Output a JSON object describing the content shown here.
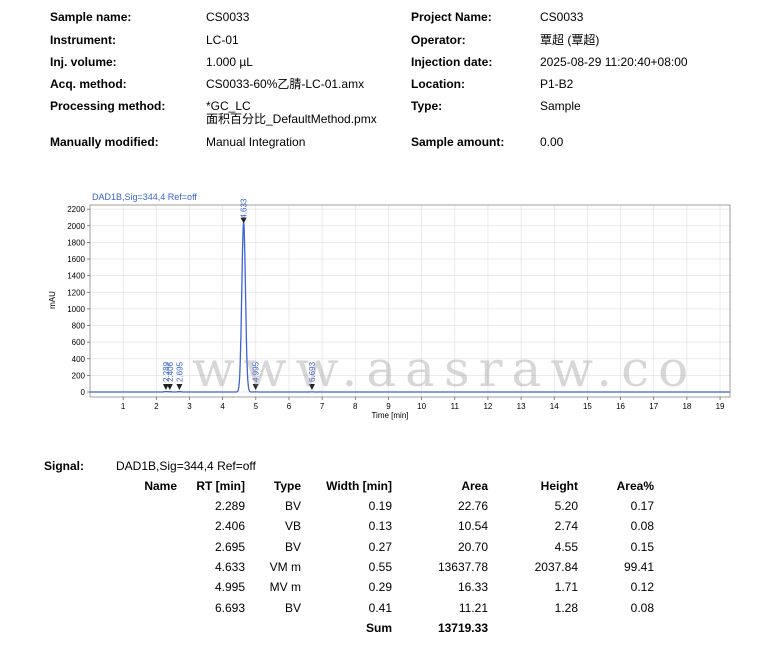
{
  "header": {
    "left": [
      {
        "label": "Sample name:",
        "value": "CS0033"
      },
      {
        "label": "Instrument:",
        "value": "LC-01"
      },
      {
        "label": "Inj. volume:",
        "value": "1.000 µL"
      },
      {
        "label": "Acq. method:",
        "value": "CS0033-60%乙腈-LC-01.amx"
      },
      {
        "label": "Processing method:",
        "value": "*GC_LC",
        "value2": "面积百分比_DefaultMethod.pmx"
      },
      {
        "label": "Manually modified:",
        "value": "Manual Integration"
      }
    ],
    "right": [
      {
        "label": "Project Name:",
        "value": "CS0033"
      },
      {
        "label": "Operator:",
        "value": "覃超 (覃超)"
      },
      {
        "label": "Injection date:",
        "value": "2025-08-29 11:20:40+08:00"
      },
      {
        "label": "Location:",
        "value": "P1-B2"
      },
      {
        "label": "Type:",
        "value": "Sample"
      },
      {
        "label": "Sample amount:",
        "value": "0.00"
      }
    ]
  },
  "chart_data": {
    "type": "line",
    "signal_label": "DAD1B,Sig=344,4  Ref=off",
    "xlabel": "Time [min]",
    "ylabel": "mAU",
    "xlim": [
      0,
      19.3
    ],
    "ylim": [
      -60,
      2250
    ],
    "xticks": [
      1,
      2,
      3,
      4,
      5,
      6,
      7,
      8,
      9,
      10,
      11,
      12,
      13,
      14,
      15,
      16,
      17,
      18,
      19
    ],
    "yticks": [
      0,
      200,
      400,
      600,
      800,
      1000,
      1200,
      1400,
      1600,
      1800,
      2000,
      2200
    ],
    "grid": true,
    "color": "#3b62d6",
    "peaks": [
      {
        "rt": 2.289,
        "label": "2.289",
        "height": 5.2
      },
      {
        "rt": 2.406,
        "label": "2.406",
        "height": 2.74
      },
      {
        "rt": 2.695,
        "label": "2.695",
        "height": 4.55
      },
      {
        "rt": 4.633,
        "label": "4.633",
        "height": 2037.84
      },
      {
        "rt": 4.995,
        "label": "4.995",
        "height": 1.71
      },
      {
        "rt": 6.693,
        "label": "6.693",
        "height": 1.28
      }
    ]
  },
  "watermark": "www.aasraw.co",
  "signal": {
    "label": "Signal:",
    "value": "DAD1B,Sig=344,4  Ref=off"
  },
  "table": {
    "headers": [
      "Name",
      "RT [min]",
      "Type",
      "Width [min]",
      "Area",
      "Height",
      "Area%"
    ],
    "rows": [
      [
        "",
        "2.289",
        "BV",
        "0.19",
        "22.76",
        "5.20",
        "0.17"
      ],
      [
        "",
        "2.406",
        "VB",
        "0.13",
        "10.54",
        "2.74",
        "0.08"
      ],
      [
        "",
        "2.695",
        "BV",
        "0.27",
        "20.70",
        "4.55",
        "0.15"
      ],
      [
        "",
        "4.633",
        "VM m",
        "0.55",
        "13637.78",
        "2037.84",
        "99.41"
      ],
      [
        "",
        "4.995",
        "MV m",
        "0.29",
        "16.33",
        "1.71",
        "0.12"
      ],
      [
        "",
        "6.693",
        "BV",
        "0.41",
        "11.21",
        "1.28",
        "0.08"
      ]
    ],
    "sum_label": "Sum",
    "sum_value": "13719.33"
  }
}
